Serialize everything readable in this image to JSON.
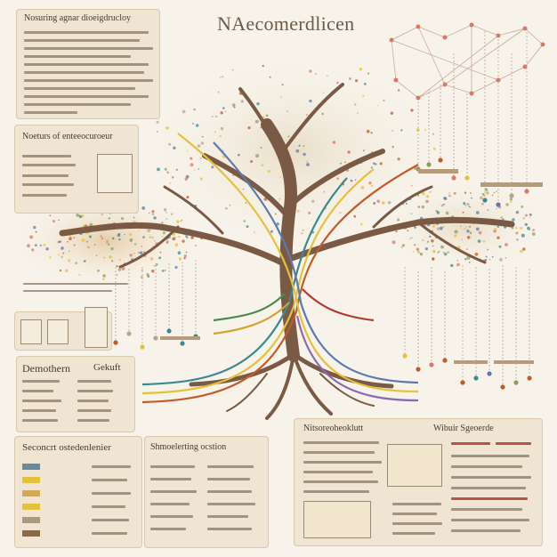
{
  "title": "NAecomerdlicen",
  "panels": {
    "top_left": {
      "heading": "Nosuring agnar dioeigdrucloy"
    },
    "mid_left": {
      "heading": "Noeturs of enteeocuroeur"
    },
    "lower_left": {
      "heading_a": "Demothern",
      "heading_b": "Gekuft"
    },
    "bottom_left": {
      "heading": "Seconcrt ostedenlenier"
    },
    "bottom_mid": {
      "heading": "Shmoelerting ocstion"
    },
    "bottom_right": {
      "heading_a": "Nitsoreoheoklutt",
      "heading_b": "Wibuir Sgeoerde"
    }
  },
  "colors": {
    "trunk": "#7a5a44",
    "panel": "#efe5d2",
    "accent_teal": "#3a8a92",
    "accent_yellow": "#e4c13a",
    "accent_red": "#b23a2c"
  }
}
